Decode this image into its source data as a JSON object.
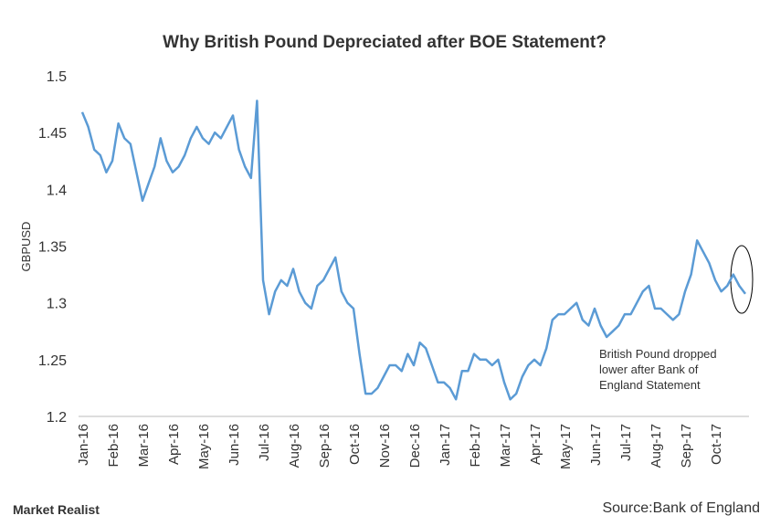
{
  "chart_data": {
    "type": "line",
    "title": "Why British Pound Depreciated after BOE Statement?",
    "y_label": "GBPUSD",
    "annotation": [
      "British Pound dropped",
      "lower after Bank of",
      "England Statement"
    ],
    "source": "Source:Bank of England",
    "logo": "Market Realist",
    "categories": [
      "Jan-16",
      null,
      null,
      null,
      null,
      "Feb-16",
      null,
      null,
      null,
      null,
      "Mar-16",
      null,
      null,
      null,
      null,
      "Apr-16",
      null,
      null,
      null,
      null,
      "May-16",
      null,
      null,
      null,
      null,
      "Jun-16",
      null,
      null,
      null,
      null,
      "Jul-16",
      null,
      null,
      null,
      null,
      "Aug-16",
      null,
      null,
      null,
      null,
      "Sep-16",
      null,
      null,
      null,
      null,
      "Oct-16",
      null,
      null,
      null,
      null,
      "Nov-16",
      null,
      null,
      null,
      null,
      "Dec-16",
      null,
      null,
      null,
      null,
      "Jan-17",
      null,
      null,
      null,
      null,
      "Feb-17",
      null,
      null,
      null,
      null,
      "Mar-17",
      null,
      null,
      null,
      null,
      "Apr-17",
      null,
      null,
      null,
      null,
      "May-17",
      null,
      null,
      null,
      null,
      "Jun-17",
      null,
      null,
      null,
      null,
      "Jul-17",
      null,
      null,
      null,
      null,
      "Aug-17",
      null,
      null,
      null,
      null,
      "Sep-17",
      null,
      null,
      null,
      null,
      "Oct-17",
      null,
      null,
      null,
      null,
      null
    ],
    "series": [
      {
        "name": "GBPUSD",
        "color": "#5b9bd5",
        "values": [
          1.468,
          1.455,
          1.435,
          1.43,
          1.415,
          1.425,
          1.458,
          1.445,
          1.44,
          1.415,
          1.39,
          1.405,
          1.42,
          1.445,
          1.425,
          1.415,
          1.42,
          1.43,
          1.445,
          1.455,
          1.445,
          1.44,
          1.45,
          1.445,
          1.455,
          1.465,
          1.435,
          1.42,
          1.41,
          1.478,
          1.32,
          1.29,
          1.31,
          1.32,
          1.315,
          1.33,
          1.31,
          1.3,
          1.295,
          1.315,
          1.32,
          1.33,
          1.34,
          1.31,
          1.3,
          1.295,
          1.255,
          1.22,
          1.22,
          1.225,
          1.235,
          1.245,
          1.245,
          1.24,
          1.255,
          1.245,
          1.265,
          1.26,
          1.245,
          1.23,
          1.23,
          1.225,
          1.215,
          1.24,
          1.24,
          1.255,
          1.25,
          1.25,
          1.245,
          1.25,
          1.23,
          1.215,
          1.22,
          1.235,
          1.245,
          1.25,
          1.245,
          1.26,
          1.285,
          1.29,
          1.29,
          1.295,
          1.3,
          1.285,
          1.28,
          1.295,
          1.28,
          1.27,
          1.275,
          1.28,
          1.29,
          1.29,
          1.3,
          1.31,
          1.315,
          1.295,
          1.295,
          1.29,
          1.285,
          1.29,
          1.31,
          1.325,
          1.355,
          1.345,
          1.335,
          1.32,
          1.31,
          1.315,
          1.325,
          1.315,
          1.308
        ]
      }
    ],
    "ylim": [
      1.2,
      1.5
    ],
    "yticks": [
      1.2,
      1.25,
      1.3,
      1.35,
      1.4,
      1.45,
      1.5
    ]
  }
}
